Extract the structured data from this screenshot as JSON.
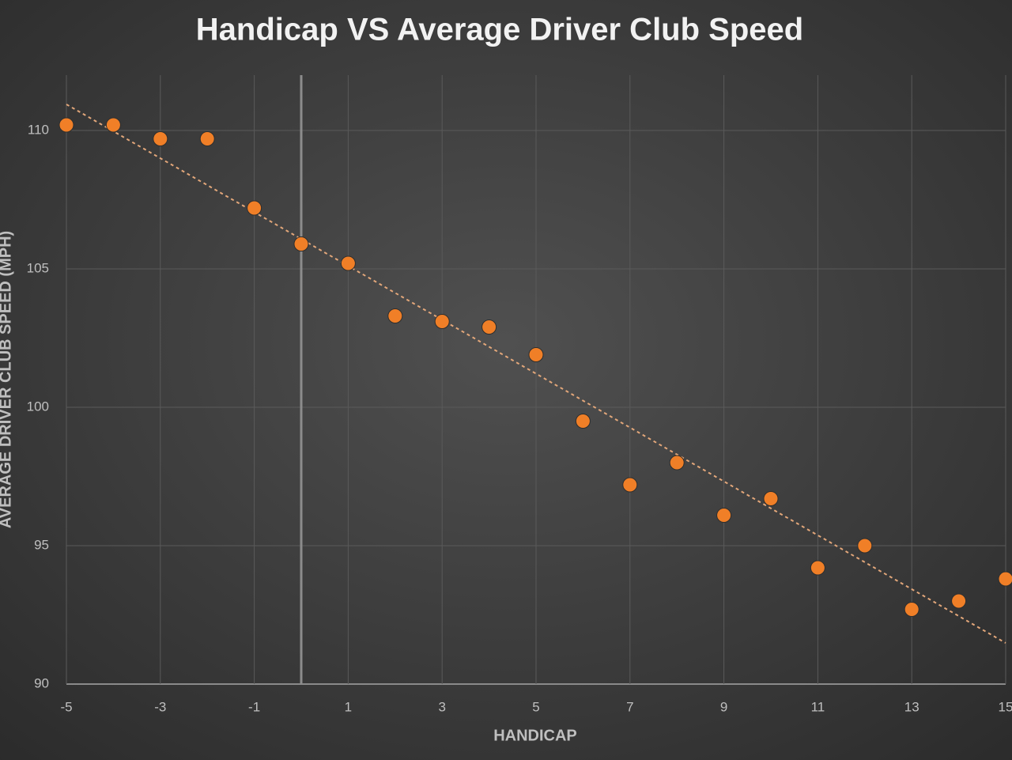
{
  "chart_data": {
    "type": "scatter",
    "title": "Handicap VS Average Driver Club Speed",
    "x_label": "HANDICAP",
    "y_label": "AVERAGE DRIVER CLUB SPEED (MPH)",
    "x": [
      -5,
      -4,
      -3,
      -2,
      -1,
      0,
      1,
      2,
      3,
      4,
      5,
      6,
      7,
      8,
      9,
      10,
      11,
      12,
      13,
      14,
      15
    ],
    "series": [
      {
        "name": "Average Driver Club Speed",
        "color": "#f07f27",
        "values": [
          110.2,
          110.2,
          109.7,
          109.7,
          107.2,
          105.9,
          105.2,
          103.3,
          103.1,
          102.9,
          101.9,
          99.5,
          97.2,
          98.0,
          96.1,
          96.7,
          94.2,
          95.0,
          92.7,
          93.0,
          93.8
        ]
      }
    ],
    "xlim": [
      -5,
      15
    ],
    "xticks": [
      -5,
      -3,
      -1,
      1,
      3,
      5,
      7,
      9,
      11,
      13,
      15
    ],
    "ylim": [
      90,
      112
    ],
    "yticks": [
      90,
      95,
      100,
      105,
      110
    ],
    "grid": true,
    "zero_line": true,
    "trendline": "linear",
    "trendline_color": "#e3a77a"
  }
}
